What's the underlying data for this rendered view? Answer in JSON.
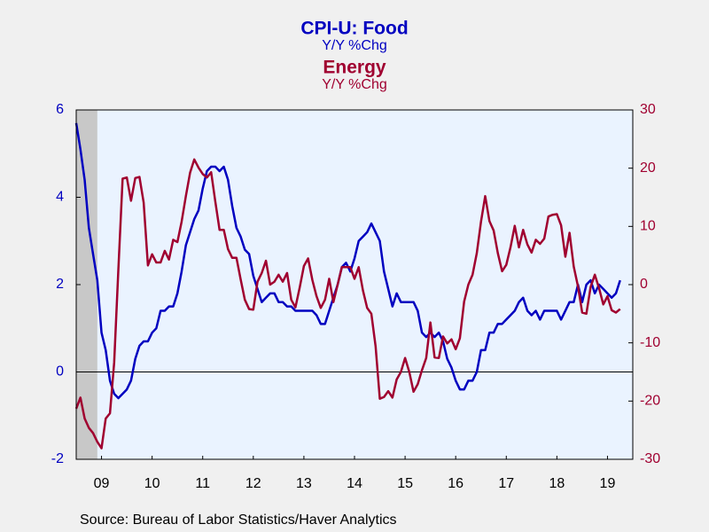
{
  "chart_data": {
    "type": "line",
    "title": "CPI-U: Food",
    "subtitle": "Y/Y %Chg",
    "title2": "Energy",
    "subtitle2": "Y/Y %Chg",
    "source": "Source:  Bureau of Labor Statistics/Haver Analytics",
    "x": [
      2009,
      2009.083,
      2009.167,
      2009.25,
      2009.333,
      2009.417,
      2009.5,
      2009.583,
      2009.667,
      2009.75,
      2009.833,
      2009.917,
      2010,
      2010.083,
      2010.167,
      2010.25,
      2010.333,
      2010.417,
      2010.5,
      2010.583,
      2010.667,
      2010.75,
      2010.833,
      2010.917,
      2011,
      2011.083,
      2011.167,
      2011.25,
      2011.333,
      2011.417,
      2011.5,
      2011.583,
      2011.667,
      2011.75,
      2011.833,
      2011.917,
      2012,
      2012.083,
      2012.167,
      2012.25,
      2012.333,
      2012.417,
      2012.5,
      2012.583,
      2012.667,
      2012.75,
      2012.833,
      2012.917,
      2013,
      2013.083,
      2013.167,
      2013.25,
      2013.333,
      2013.417,
      2013.5,
      2013.583,
      2013.667,
      2013.75,
      2013.833,
      2013.917,
      2014,
      2014.083,
      2014.167,
      2014.25,
      2014.333,
      2014.417,
      2014.5,
      2014.583,
      2014.667,
      2014.75,
      2014.833,
      2014.917,
      2015,
      2015.083,
      2015.167,
      2015.25,
      2015.333,
      2015.417,
      2015.5,
      2015.583,
      2015.667,
      2015.75,
      2015.833,
      2015.917,
      2016,
      2016.083,
      2016.167,
      2016.25,
      2016.333,
      2016.417,
      2016.5,
      2016.583,
      2016.667,
      2016.75,
      2016.833,
      2016.917,
      2017,
      2017.083,
      2017.167,
      2017.25,
      2017.333,
      2017.417,
      2017.5,
      2017.583,
      2017.667,
      2017.75,
      2017.833,
      2017.917,
      2018,
      2018.083,
      2018.167,
      2018.25,
      2018.333,
      2018.417,
      2018.5,
      2018.583,
      2018.667,
      2018.75,
      2018.833,
      2018.917,
      2019,
      2019.083,
      2019.167,
      2019.25,
      2019.333,
      2019.417,
      2019.5,
      2019.583,
      2019.667,
      2019.75
    ],
    "series": [
      {
        "name": "CPI-U: Food",
        "color": "#0000c0",
        "axis": "y",
        "values": [
          5.7,
          5.1,
          4.4,
          3.3,
          2.7,
          2.1,
          0.9,
          0.5,
          -0.2,
          -0.5,
          -0.6,
          -0.5,
          -0.4,
          -0.2,
          0.3,
          0.6,
          0.7,
          0.7,
          0.9,
          1.0,
          1.4,
          1.4,
          1.5,
          1.5,
          1.8,
          2.3,
          2.9,
          3.2,
          3.5,
          3.7,
          4.2,
          4.6,
          4.7,
          4.7,
          4.6,
          4.7,
          4.4,
          3.8,
          3.3,
          3.1,
          2.8,
          2.7,
          2.2,
          1.9,
          1.6,
          1.7,
          1.8,
          1.8,
          1.6,
          1.6,
          1.5,
          1.5,
          1.4,
          1.4,
          1.4,
          1.4,
          1.4,
          1.3,
          1.1,
          1.1,
          1.4,
          1.7,
          2.0,
          2.4,
          2.5,
          2.3,
          2.6,
          3.0,
          3.1,
          3.2,
          3.4,
          3.2,
          3.0,
          2.3,
          1.9,
          1.5,
          1.8,
          1.6,
          1.6,
          1.6,
          1.6,
          1.4,
          0.9,
          0.8,
          0.9,
          0.8,
          0.9,
          0.7,
          0.3,
          0.1,
          -0.2,
          -0.4,
          -0.4,
          -0.2,
          -0.2,
          0.0,
          0.5,
          0.5,
          0.9,
          0.9,
          1.1,
          1.1,
          1.2,
          1.3,
          1.4,
          1.6,
          1.7,
          1.4,
          1.3,
          1.4,
          1.2,
          1.4,
          1.4,
          1.4,
          1.4,
          1.2,
          1.4,
          1.6,
          1.6,
          2.0,
          1.6,
          2.0,
          2.1,
          1.8,
          2.0,
          1.9,
          1.8,
          1.7,
          1.8,
          2.1
        ]
      },
      {
        "name": "Energy",
        "color": "#a00030",
        "axis": "y2",
        "values": [
          -21.3,
          -19.4,
          -23.0,
          -24.6,
          -25.5,
          -27.0,
          -28.1,
          -23.0,
          -22.1,
          -13.4,
          2.6,
          18.2,
          18.4,
          14.4,
          18.3,
          18.5,
          14.1,
          3.3,
          5.2,
          3.8,
          3.8,
          5.8,
          4.3,
          7.7,
          7.3,
          10.8,
          15.2,
          19.2,
          21.5,
          20.1,
          19.0,
          18.4,
          19.3,
          14.2,
          9.4,
          9.4,
          6.1,
          4.6,
          4.6,
          0.9,
          -2.6,
          -4.2,
          -4.3,
          0.5,
          2.0,
          4.1,
          0.0,
          0.5,
          1.7,
          0.5,
          2.0,
          -2.6,
          -3.9,
          -0.5,
          3.2,
          4.5,
          0.8,
          -2.0,
          -4.0,
          -2.6,
          1.0,
          -3.0,
          0.0,
          3.0,
          3.0,
          3.0,
          1.0,
          3.0,
          -1.0,
          -4.0,
          -5.0,
          -10.6,
          -19.6,
          -19.3,
          -18.3,
          -19.4,
          -16.3,
          -15.0,
          -12.6,
          -15.0,
          -18.4,
          -17.1,
          -14.7,
          -12.6,
          -6.5,
          -12.5,
          -12.6,
          -8.9,
          -10.1,
          -9.4,
          -11.1,
          -9.2,
          -2.9,
          0.0,
          1.7,
          5.4,
          10.8,
          15.2,
          10.9,
          9.3,
          5.4,
          2.3,
          3.4,
          6.4,
          10.1,
          6.4,
          9.4,
          6.9,
          5.5,
          7.7,
          7.0,
          7.9,
          11.7,
          12.0,
          12.1,
          10.2,
          4.8,
          8.9,
          3.1,
          -0.3,
          -4.8,
          -5.0,
          -0.4,
          1.7,
          -0.6,
          -3.4,
          -2.0,
          -4.4,
          -4.8,
          -4.2
        ]
      }
    ],
    "shaded": [
      [
        2009,
        2009.417
      ]
    ],
    "xlim": [
      2009,
      2020
    ],
    "xticks": [
      {
        "value": 2009.5,
        "label": "09"
      },
      {
        "value": 2010.5,
        "label": "10"
      },
      {
        "value": 2011.5,
        "label": "11"
      },
      {
        "value": 2012.5,
        "label": "12"
      },
      {
        "value": 2013.5,
        "label": "13"
      },
      {
        "value": 2014.5,
        "label": "14"
      },
      {
        "value": 2015.5,
        "label": "15"
      },
      {
        "value": 2016.5,
        "label": "16"
      },
      {
        "value": 2017.5,
        "label": "17"
      },
      {
        "value": 2018.5,
        "label": "18"
      },
      {
        "value": 2019.5,
        "label": "19"
      }
    ],
    "ylim": [
      -2,
      6
    ],
    "yticks": [
      -2,
      0,
      2,
      4,
      6
    ],
    "y2lim": [
      -30,
      30
    ],
    "y2ticks": [
      -30,
      -20,
      -10,
      0,
      10,
      20,
      30
    ]
  }
}
